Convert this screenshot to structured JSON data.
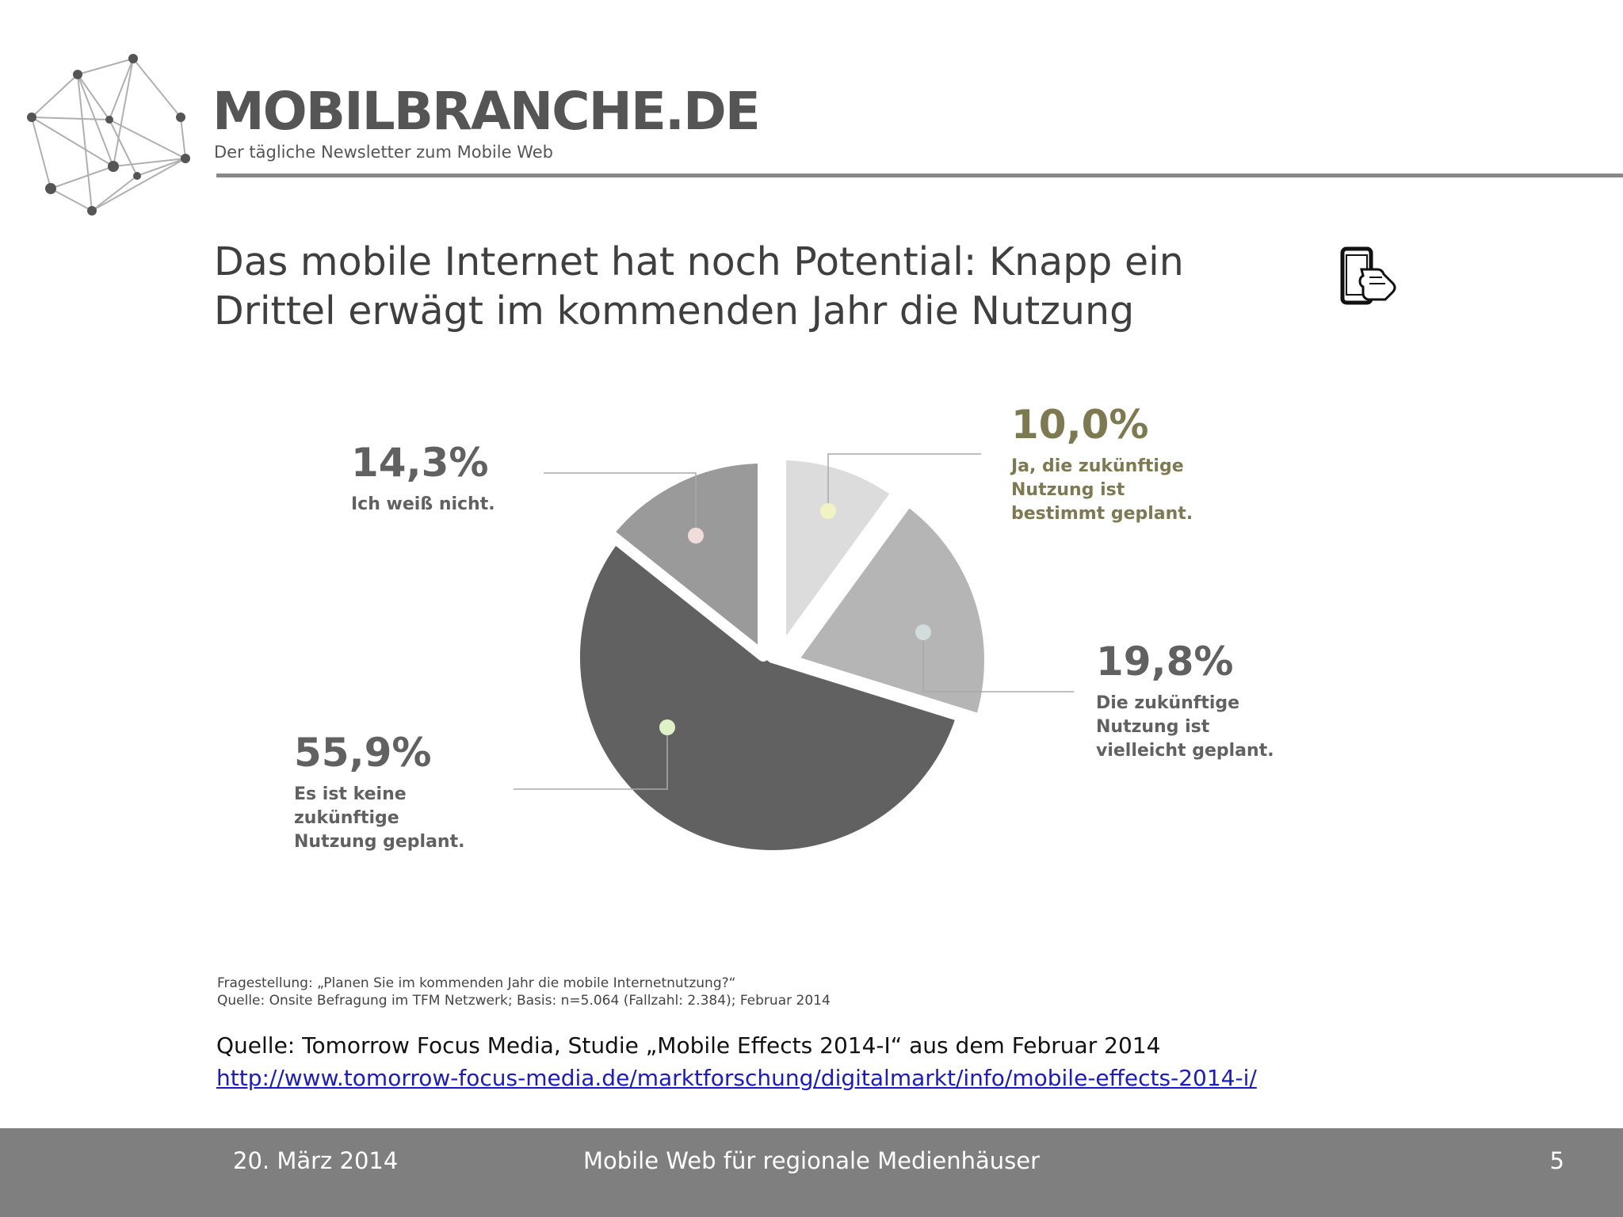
{
  "brand": {
    "name": "MOBILBRANCHE.DE",
    "tagline": "Der tägliche Newsletter zum Mobile Web"
  },
  "slide": {
    "title": "Das mobile Internet hat noch Potential: Knapp ein Drittel erwägt im kommenden Jahr die Nutzung"
  },
  "icons": {
    "logo": "network-globe-icon",
    "header": "smartphone-hand-icon"
  },
  "colors": {
    "slice_ja": "#dcdcdc",
    "slice_vielleicht": "#b5b5b5",
    "slice_keine": "#616161",
    "slice_weiss_nicht": "#9a9a9a",
    "label_highlight": "#7d7950",
    "label_default": "#616161",
    "footer_bg": "#7f7f7f"
  },
  "chart_data": {
    "type": "pie",
    "title": "",
    "slices": [
      {
        "label": "Ja, die zukünftige Nutzung ist bestimmt geplant.",
        "value": 10.0,
        "value_text": "10,0%"
      },
      {
        "label": "Die zukünftige Nutzung ist vielleicht geplant.",
        "value": 19.8,
        "value_text": "19,8%"
      },
      {
        "label": "Es ist keine zukünftige Nutzung geplant.",
        "value": 55.9,
        "value_text": "55,9%"
      },
      {
        "label": "Ich weiß nicht.",
        "value": 14.3,
        "value_text": "14,3%"
      }
    ],
    "annotations": [
      "Fragestellung: „Planen Sie im kommenden Jahr die mobile Internetnutzung?“",
      "Quelle: Onsite Befragung im TFM Netzwerk; Basis: n=5.064 (Fallzahl: 2.384); Februar 2014"
    ]
  },
  "source": {
    "text": "Quelle: Tomorrow Focus Media, Studie „Mobile Effects 2014-I“ aus dem Februar 2014",
    "link": "http://www.tomorrow-focus-media.de/marktforschung/digitalmarkt/info/mobile-effects-2014-i/"
  },
  "footer": {
    "date": "20. März 2014",
    "title": "Mobile Web für regionale Medienhäuser",
    "page": "5"
  }
}
